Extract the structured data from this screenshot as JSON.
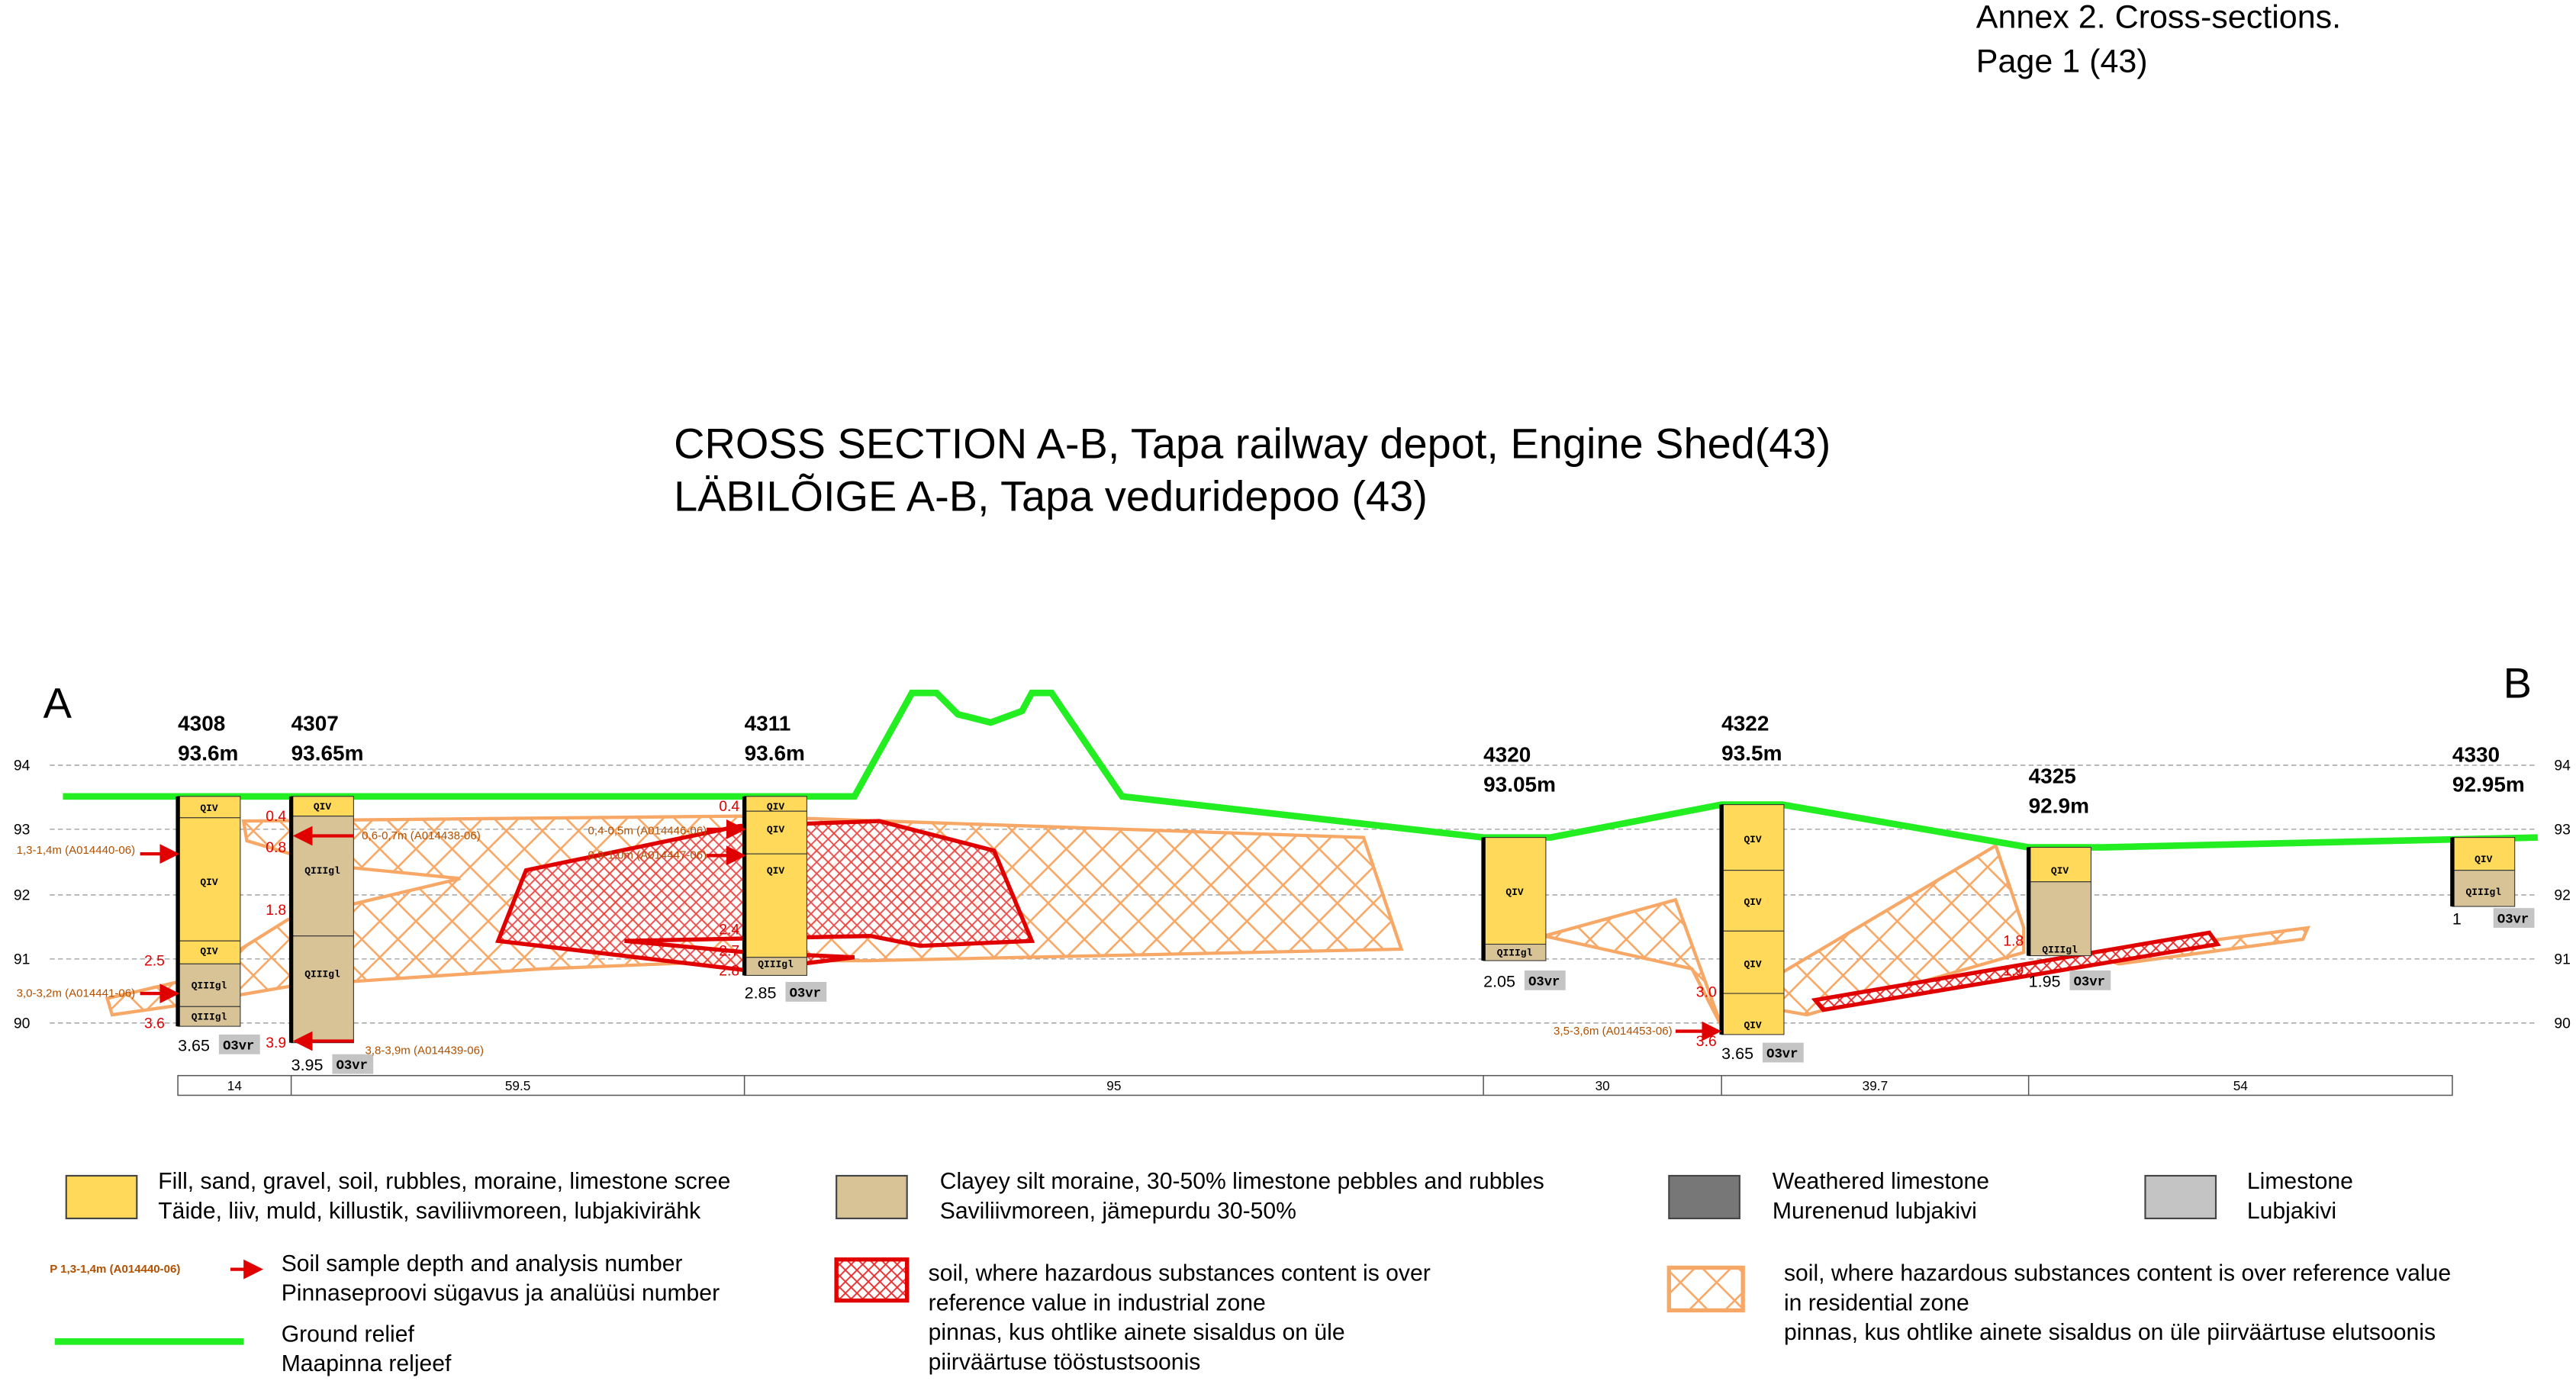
{
  "header": {
    "annex": "Annex 2. Cross-sections.",
    "page": "Page 1  (43)"
  },
  "title": {
    "en": "CROSS SECTION  A-B, Tapa railway depot, Engine Shed(43)",
    "et": "LÄBILÕIGE  A-B, Tapa veduridepoo (43)"
  },
  "section": {
    "start": "A",
    "end": "B",
    "elevations": [
      94,
      93,
      92,
      91,
      90
    ]
  },
  "boreholes": [
    {
      "id": "4308",
      "elevation": "93.6m",
      "depth": "3.65",
      "bedrock": "O3vr",
      "layers": [
        "QIV",
        "QIV",
        "QIV",
        "QIIIgl",
        "QIIIgl"
      ],
      "marks": [
        "2.5",
        "3.6"
      ]
    },
    {
      "id": "4307",
      "elevation": "93.65m",
      "depth": "3.95",
      "bedrock": "O3vr",
      "layers": [
        "QIV",
        "QIIIgl",
        "QIIIgl"
      ],
      "marks": [
        "0.4",
        "0.8",
        "1.8",
        "3.9"
      ]
    },
    {
      "id": "4311",
      "elevation": "93.6m",
      "depth": "2.85",
      "bedrock": "O3vr",
      "layers": [
        "QIV",
        "QIV",
        "QIV",
        "QIIIgl"
      ],
      "marks": [
        "0.4",
        "2.4",
        "2.7",
        "2.8"
      ]
    },
    {
      "id": "4320",
      "elevation": "93.05m",
      "depth": "2.05",
      "bedrock": "O3vr",
      "layers": [
        "QIV",
        "QIIIgl"
      ],
      "marks": []
    },
    {
      "id": "4322",
      "elevation": "93.5m",
      "depth": "3.65",
      "bedrock": "O3vr",
      "layers": [
        "QIV",
        "QIV",
        "QIV",
        "QIV"
      ],
      "marks": [
        "3.0",
        "3.6"
      ]
    },
    {
      "id": "4325",
      "elevation": "92.9m",
      "depth": "1.95",
      "bedrock": "O3vr",
      "layers": [
        "QIV",
        "QIIIgl"
      ],
      "marks": [
        "1.8",
        "1.9"
      ]
    },
    {
      "id": "4330",
      "elevation": "92.95m",
      "depth": "1",
      "bedrock": "O3vr",
      "layers": [
        "QIV",
        "QIIIgl"
      ],
      "marks": []
    }
  ],
  "distances": [
    "14",
    "59.5",
    "95",
    "30",
    "39.7",
    "54"
  ],
  "samples": [
    "1,3-1,4m (A014440-06)",
    "3,0-3,2m (A014441-06)",
    "0,6-0,7m (A014438-06)",
    "3,8-3,9m (A014439-06)",
    "0,4-0,5m (A014446-06)",
    "0,9-1,0m (A014447-06)",
    "3,5-3,6m (A014453-06)"
  ],
  "legend": {
    "items": [
      {
        "lines": [
          "Fill, sand, gravel, soil, rubbles, moraine, limestone scree",
          "Täide, liiv, muld, killustik, saviliivmoreen, lubjakivirähk"
        ]
      },
      {
        "lines": [
          "Clayey silt moraine, 30-50% limestone pebbles and rubbles",
          "Saviliivmoreen, jämepurdu 30-50%"
        ]
      },
      {
        "lines": [
          "Weathered limestone",
          "Murenenud lubjakivi"
        ]
      },
      {
        "lines": [
          "Limestone",
          "Lubjakivi"
        ]
      },
      {
        "icon": "P 1,3-1,4m (A014440-06)",
        "lines": [
          "Soil sample depth and analysis number",
          "Pinnaseproovi sügavus ja analüüsi number"
        ]
      },
      {
        "lines": [
          "soil, where hazardous substances content is over",
          "reference value in industrial zone",
          "pinnas, kus ohtlike ainete sisaldus on üle",
          "piirväärtuse tööstustsoonis"
        ]
      },
      {
        "lines": [
          "soil, where hazardous substances content is over reference value",
          "in residential zone",
          "pinnas, kus ohtlike ainete sisaldus on üle piirväärtuse elutsoonis"
        ]
      },
      {
        "lines": [
          "Ground relief",
          "Maapinna reljeef"
        ]
      }
    ]
  }
}
